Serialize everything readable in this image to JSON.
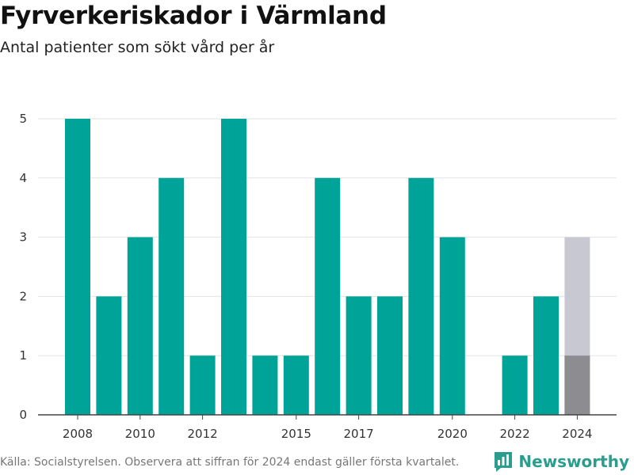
{
  "title": "Fyrverkeriskador i Värmland",
  "subtitle": "Antal patienter som sökt vård per år",
  "footer": "Källa: Socialstyrelsen. Observera att siffran för 2024 endast gäller första kvartalet.",
  "brand": "Newsworthy",
  "colors": {
    "bar": "#00a398",
    "partial_total": "#c8c8d2",
    "partial_actual": "#8c8c91",
    "grid": "#e3e3e3",
    "axis": "#444444",
    "brand": "#2a9d8f"
  },
  "chart_data": {
    "type": "bar",
    "x": [
      2008,
      2009,
      2010,
      2011,
      2012,
      2013,
      2014,
      2015,
      2016,
      2017,
      2018,
      2019,
      2020,
      2021,
      2022,
      2023,
      2024
    ],
    "values": [
      5,
      2,
      3,
      4,
      1,
      5,
      1,
      1,
      4,
      2,
      2,
      4,
      3,
      0,
      1,
      2,
      1
    ],
    "partial_year": 2024,
    "partial_year_range_top": 3,
    "x_tick_labels": [
      2008,
      2010,
      2012,
      2015,
      2017,
      2020,
      2022,
      2024
    ],
    "y_ticks": [
      0,
      1,
      2,
      3,
      4,
      5
    ],
    "ylim": [
      0,
      5
    ],
    "grid": true,
    "legend": false
  }
}
